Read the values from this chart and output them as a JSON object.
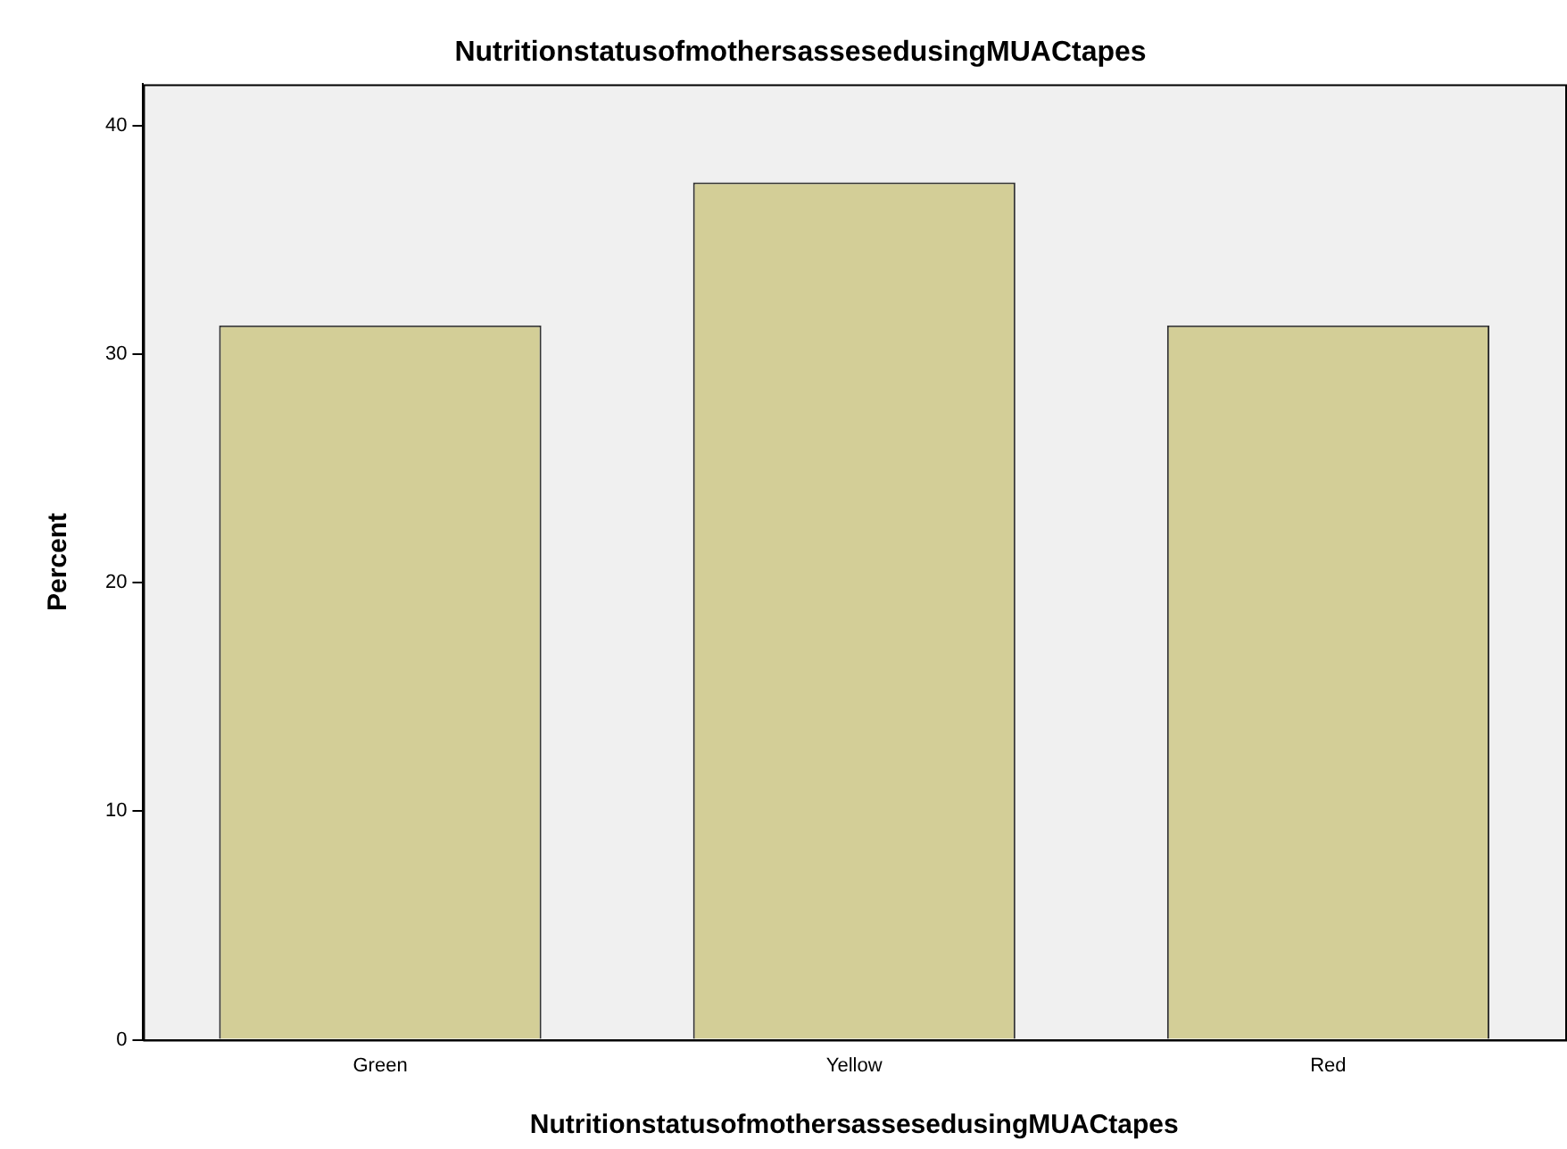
{
  "chart_data": {
    "type": "bar",
    "title": "NutritionstatusofmothersassesedusingMUACtapes",
    "xlabel": "NutritionstatusofmothersassesedusingMUACtapes",
    "ylabel": "Percent",
    "categories": [
      "Green",
      "Yellow",
      "Red"
    ],
    "values": [
      31.25,
      37.5,
      31.25
    ],
    "color": "#d3ce97",
    "ylim": [
      0,
      41.8
    ],
    "yticks": [
      0,
      10,
      20,
      30,
      40
    ],
    "grid": false,
    "legend": false
  }
}
